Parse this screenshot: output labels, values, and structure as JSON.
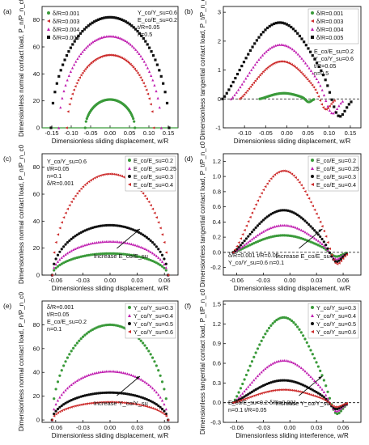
{
  "figure": {
    "background": "#ffffff"
  },
  "chart_data": [
    {
      "panel": "(a)",
      "type": "scatter",
      "xlabel": "Dimensionless sliding displacement, w/R",
      "ylabel": "Dimensionless normal contact load, P_n/P_n_c0",
      "xlim": [
        -0.175,
        0.175
      ],
      "ylim": [
        0,
        90
      ],
      "xticks": [
        -0.15,
        -0.1,
        -0.05,
        0.0,
        0.05,
        0.1,
        0.15
      ],
      "xtick_labels": [
        "-0.15",
        "-0.10",
        "-0.05",
        "0.00",
        "0.05",
        "0.10",
        "0.15"
      ],
      "yticks": [
        0,
        20,
        40,
        60,
        80
      ],
      "ytick_labels": [
        "0",
        "20",
        "40",
        "60",
        "80"
      ],
      "legend_position": "top-left",
      "annotation": [
        "Y_co/Y_su=0.6",
        "E_co/E_su=0.2",
        "t/R=0.05",
        "n=0.5"
      ],
      "series": [
        {
          "name": "δ/R=0.001",
          "color": "#3a9a3a",
          "marker": "circle",
          "shape": "arch",
          "x0": -0.064,
          "x1": 0.064,
          "peak": 21,
          "zero_line": true
        },
        {
          "name": "δ/R=0.003",
          "color": "#cc2a2a",
          "marker": "triangle-left",
          "shape": "arch",
          "x0": -0.112,
          "x1": 0.112,
          "peak": 54
        },
        {
          "name": "δ/R=0.004",
          "color": "#c020b0",
          "marker": "triangle-up",
          "shape": "arch",
          "x0": -0.132,
          "x1": 0.132,
          "peak": 68
        },
        {
          "name": "δ/R=0.005",
          "color": "#111111",
          "marker": "square",
          "shape": "arch",
          "x0": -0.152,
          "x1": 0.152,
          "peak": 82
        }
      ]
    },
    {
      "panel": "(b)",
      "type": "scatter",
      "xlabel": "Dimensionless sliding displacement, w/R",
      "ylabel": "Dimensionless tangential contact load, P_t/P_n_c0",
      "xlim": [
        -0.15,
        0.175
      ],
      "ylim": [
        -1.0,
        3.2
      ],
      "xticks": [
        -0.1,
        -0.05,
        0.0,
        0.05,
        0.1,
        0.15
      ],
      "xtick_labels": [
        "-0.10",
        "-0.05",
        "0.00",
        "0.05",
        "0.10",
        "0.15"
      ],
      "yticks": [
        -1,
        0,
        1,
        2,
        3
      ],
      "ytick_labels": [
        "-1",
        "0",
        "1",
        "2",
        "3"
      ],
      "dashed_zero": true,
      "legend_position": "top-right",
      "annotation": [
        "E_co/E_su=0.2",
        "Y_co/Y_su=0.6",
        "t/R=0.05",
        "n=0.5"
      ],
      "series": [
        {
          "name": "δ/R=0.001",
          "color": "#3a9a3a",
          "marker": "circle",
          "shape": "tang",
          "x0": -0.064,
          "x1": 0.064,
          "peak": 0.22,
          "neg": -0.12
        },
        {
          "name": "δ/R=0.003",
          "color": "#cc2a2a",
          "marker": "triangle-left",
          "shape": "tang",
          "x0": -0.112,
          "x1": 0.112,
          "peak": 1.45,
          "neg": -0.45
        },
        {
          "name": "δ/R=0.004",
          "color": "#c020b0",
          "marker": "triangle-up",
          "shape": "tang",
          "x0": -0.132,
          "x1": 0.132,
          "peak": 2.1,
          "neg": -0.62
        },
        {
          "name": "δ/R=0.005",
          "color": "#111111",
          "marker": "square",
          "shape": "tang",
          "x0": -0.152,
          "x1": 0.152,
          "peak": 2.95,
          "neg": -0.78
        }
      ]
    },
    {
      "panel": "(c)",
      "type": "scatter",
      "xlabel": "Dimensionless sliding displacement, w/R",
      "ylabel": "Dimensionless normal contact load, P_n/P_n_c0",
      "xlim": [
        -0.075,
        0.075
      ],
      "ylim": [
        0,
        90
      ],
      "xticks": [
        -0.06,
        -0.03,
        0.0,
        0.03,
        0.06
      ],
      "xtick_labels": [
        "-0.06",
        "-0.03",
        "0.00",
        "0.03",
        "0.06"
      ],
      "yticks": [
        0,
        20,
        40,
        60,
        80
      ],
      "ytick_labels": [
        "0",
        "20",
        "40",
        "60",
        "80"
      ],
      "legend_position": "top-right",
      "annotation": [
        "Y_co/Y_su=0.6",
        "t/R=0.05",
        "n=0.1",
        "δ/R=0.001"
      ],
      "arrow_label": "Increase E_co/E_su",
      "series": [
        {
          "name": "E_co/E_su=0.2",
          "color": "#3a9a3a",
          "marker": "circle",
          "shape": "arch",
          "x0": -0.064,
          "x1": 0.064,
          "peak": 16
        },
        {
          "name": "E_co/E_su=0.25",
          "color": "#c020b0",
          "marker": "triangle-up",
          "shape": "arch",
          "x0": -0.064,
          "x1": 0.064,
          "peak": 25
        },
        {
          "name": "E_co/E_su=0.3",
          "color": "#111111",
          "marker": "circle",
          "shape": "arch",
          "x0": -0.064,
          "x1": 0.064,
          "peak": 37
        },
        {
          "name": "E_co/E_su=0.4",
          "color": "#cc2a2a",
          "marker": "triangle-left",
          "shape": "arch",
          "x0": -0.064,
          "x1": 0.064,
          "peak": 75
        }
      ]
    },
    {
      "panel": "(d)",
      "type": "scatter",
      "xlabel": "Dimensionless sliding displacement, w/R",
      "ylabel": "Dimensionless tangential contact load, P_t/P_n_c0",
      "xlim": [
        -0.075,
        0.08
      ],
      "ylim": [
        -0.3,
        1.3
      ],
      "xticks": [
        -0.06,
        -0.03,
        0.0,
        0.03,
        0.06
      ],
      "xtick_labels": [
        "-0.06",
        "-0.03",
        "0.00",
        "0.03",
        "0.06"
      ],
      "yticks": [
        -0.2,
        0.0,
        0.2,
        0.4,
        0.6,
        0.8,
        1.0,
        1.2
      ],
      "ytick_labels": [
        "-0.2",
        "0.0",
        "0.2",
        "0.4",
        "0.6",
        "0.8",
        "1.0",
        "1.2"
      ],
      "dashed_zero": true,
      "legend_position": "top-right",
      "annotation": [
        "δ/R=0.001  t/R=0.05",
        "Y_co/Y_su=0.6  n=0.1"
      ],
      "arrow_label": "Increase E_co/E_su",
      "series": [
        {
          "name": "E_co/E_su=0.2",
          "color": "#3a9a3a",
          "marker": "circle",
          "shape": "tang",
          "x0": -0.064,
          "x1": 0.064,
          "peak": 0.25,
          "neg": -0.07
        },
        {
          "name": "E_co/E_su=0.25",
          "color": "#c020b0",
          "marker": "triangle-up",
          "shape": "tang",
          "x0": -0.064,
          "x1": 0.064,
          "peak": 0.4,
          "neg": -0.11
        },
        {
          "name": "E_co/E_su=0.3",
          "color": "#111111",
          "marker": "circle",
          "shape": "tang",
          "x0": -0.064,
          "x1": 0.064,
          "peak": 0.62,
          "neg": -0.16
        },
        {
          "name": "E_co/E_su=0.4",
          "color": "#cc2a2a",
          "marker": "triangle-left",
          "shape": "tang",
          "x0": -0.064,
          "x1": 0.064,
          "peak": 1.2,
          "neg": -0.22
        }
      ]
    },
    {
      "panel": "(e)",
      "type": "scatter",
      "xlabel": "Dimensionless sliding displacement, w/R",
      "ylabel": "Dimensionless normal contact load, P_n/P_n_c0",
      "xlim": [
        -0.075,
        0.075
      ],
      "ylim": [
        -2,
        100
      ],
      "xticks": [
        -0.06,
        -0.03,
        0.0,
        0.03,
        0.06
      ],
      "xtick_labels": [
        "-0.06",
        "-0.03",
        "0.00",
        "0.03",
        "0.06"
      ],
      "yticks": [
        0,
        20,
        40,
        60,
        80
      ],
      "ytick_labels": [
        "0",
        "20",
        "40",
        "60",
        "80"
      ],
      "legend_position": "top-right",
      "annotation": [
        "δ/R=0.001",
        "t/R=0.05",
        "E_co/E_su=0.2",
        "n=0.1"
      ],
      "arrow_label": "Increase Y_co/Y_su",
      "series": [
        {
          "name": "Y_co/Y_su=0.3",
          "color": "#3a9a3a",
          "marker": "circle",
          "shape": "arch",
          "x0": -0.064,
          "x1": 0.064,
          "peak": 80
        },
        {
          "name": "Y_co/Y_su=0.4",
          "color": "#c020b0",
          "marker": "triangle-up",
          "shape": "arch",
          "x0": -0.064,
          "x1": 0.064,
          "peak": 41
        },
        {
          "name": "Y_co/Y_su=0.5",
          "color": "#111111",
          "marker": "circle",
          "shape": "arch",
          "x0": -0.064,
          "x1": 0.064,
          "peak": 23
        },
        {
          "name": "Y_co/Y_su=0.6",
          "color": "#cc2a2a",
          "marker": "triangle-left",
          "shape": "arch",
          "x0": -0.064,
          "x1": 0.064,
          "peak": 15
        }
      ]
    },
    {
      "panel": "(f)",
      "type": "scatter",
      "xlabel": "Dimensionless sliding interference, w/R",
      "ylabel": "Dimensionless tangential contact load, P_t/P_n_c0",
      "xlim": [
        -0.075,
        0.08
      ],
      "ylim": [
        -0.3,
        1.55
      ],
      "xticks": [
        -0.06,
        -0.03,
        0.0,
        0.03,
        0.06
      ],
      "xtick_labels": [
        "-0.06",
        "-0.03",
        "0.00",
        "0.03",
        "0.06"
      ],
      "yticks": [
        -0.3,
        0.0,
        0.3,
        0.6,
        0.9,
        1.2,
        1.5
      ],
      "ytick_labels": [
        "-0.3",
        "0.0",
        "0.3",
        "0.6",
        "0.9",
        "1.2",
        "1.5"
      ],
      "dashed_zero": true,
      "legend_position": "top-right",
      "annotation": [
        "E_co/E_su=0.2  δ/R=0.001",
        "n=0.1  t/R=0.05"
      ],
      "arrow_label": "Increase Y_co/Y_su",
      "series": [
        {
          "name": "Y_co/Y_su=0.3",
          "color": "#3a9a3a",
          "marker": "circle",
          "shape": "tang",
          "x0": -0.064,
          "x1": 0.064,
          "peak": 1.45,
          "neg": -0.25
        },
        {
          "name": "Y_co/Y_su=0.4",
          "color": "#c020b0",
          "marker": "triangle-up",
          "shape": "tang",
          "x0": -0.064,
          "x1": 0.064,
          "peak": 0.72,
          "neg": -0.17
        },
        {
          "name": "Y_co/Y_su=0.5",
          "color": "#111111",
          "marker": "circle",
          "shape": "tang",
          "x0": -0.064,
          "x1": 0.064,
          "peak": 0.38,
          "neg": -0.12
        },
        {
          "name": "Y_co/Y_su=0.6",
          "color": "#cc2a2a",
          "marker": "triangle-left",
          "shape": "tang",
          "x0": -0.064,
          "x1": 0.064,
          "peak": 0.22,
          "neg": -0.08
        }
      ]
    }
  ]
}
